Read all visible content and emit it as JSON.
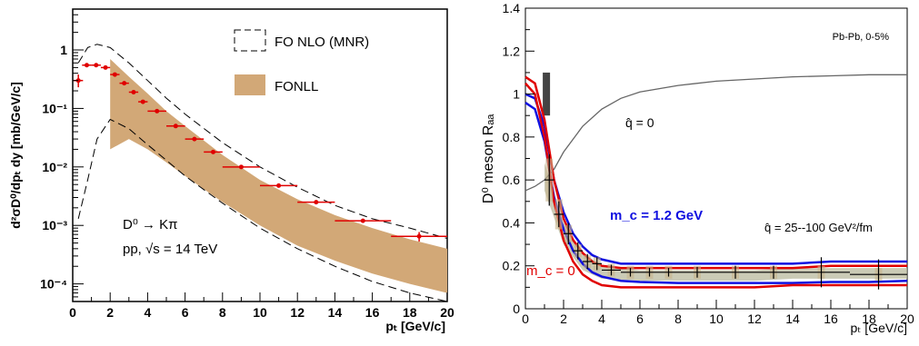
{
  "chart_data": [
    {
      "type": "area",
      "ylabel": "d²σD⁰/dpₜ dy [mb/GeV/c]",
      "xlabel": "pₜ [GeV/c]",
      "xlim": [
        0,
        20
      ],
      "ylim": [
        5e-05,
        5
      ],
      "yscale": "log",
      "xticks": [
        "0",
        "2",
        "4",
        "6",
        "8",
        "10",
        "12",
        "14",
        "16",
        "18",
        "20"
      ],
      "yticks": [
        "10⁻⁴",
        "10⁻³",
        "10⁻²",
        "10⁻¹",
        "1"
      ],
      "legend": {
        "position": "top-right",
        "entries": [
          {
            "label": "FO NLO (MNR)",
            "style": "dashed-box"
          },
          {
            "label": "FONLL",
            "style": "filled-box",
            "color": "#d2a877"
          }
        ]
      },
      "annotations": [
        "D⁰ → Kπ",
        "pp, √s = 14 TeV"
      ],
      "series": [
        {
          "name": "FO NLO (MNR)",
          "kind": "dashed-band",
          "color": "#000000",
          "x": [
            0.3,
            0.8,
            1.3,
            2,
            3,
            4,
            5,
            6,
            8,
            10,
            12,
            14,
            16,
            18,
            20
          ],
          "upper": [
            0.6,
            1.1,
            1.25,
            1.1,
            0.6,
            0.3,
            0.15,
            0.08,
            0.026,
            0.01,
            0.0045,
            0.0022,
            0.0013,
            0.0009,
            0.0006
          ],
          "lower": [
            0.0013,
            0.006,
            0.03,
            0.065,
            0.045,
            0.024,
            0.013,
            0.007,
            0.0024,
            0.0009,
            0.0004,
            0.0002,
            0.00011,
            7e-05,
            5e-05
          ]
        },
        {
          "name": "FONLL",
          "kind": "filled-band",
          "color": "#d2a877",
          "x": [
            2,
            3,
            4,
            5,
            6,
            8,
            10,
            12,
            14,
            16,
            18,
            20
          ],
          "upper": [
            0.7,
            0.35,
            0.18,
            0.09,
            0.05,
            0.016,
            0.006,
            0.0028,
            0.0015,
            0.0009,
            0.00058,
            0.0004
          ],
          "lower": [
            0.02,
            0.03,
            0.02,
            0.012,
            0.007,
            0.0025,
            0.001,
            0.00045,
            0.00025,
            0.00015,
            0.0001,
            7e-05
          ]
        },
        {
          "name": "D⁰ data",
          "kind": "points",
          "color": "#e00000",
          "points": [
            {
              "x": 0.3,
              "y": 0.3,
              "xerr": 0.25,
              "yerr_lo": 0.07,
              "yerr_hi": 0.08
            },
            {
              "x": 0.75,
              "y": 0.55,
              "xerr": 0.25
            },
            {
              "x": 1.25,
              "y": 0.55,
              "xerr": 0.25
            },
            {
              "x": 1.75,
              "y": 0.5,
              "xerr": 0.25
            },
            {
              "x": 2.25,
              "y": 0.38,
              "xerr": 0.25
            },
            {
              "x": 2.75,
              "y": 0.27,
              "xerr": 0.25
            },
            {
              "x": 3.25,
              "y": 0.19,
              "xerr": 0.25
            },
            {
              "x": 3.75,
              "y": 0.13,
              "xerr": 0.25
            },
            {
              "x": 4.5,
              "y": 0.09,
              "xerr": 0.5
            },
            {
              "x": 5.5,
              "y": 0.05,
              "xerr": 0.5
            },
            {
              "x": 6.5,
              "y": 0.03,
              "xerr": 0.5
            },
            {
              "x": 7.5,
              "y": 0.018,
              "xerr": 0.5
            },
            {
              "x": 9,
              "y": 0.01,
              "xerr": 1
            },
            {
              "x": 11,
              "y": 0.0048,
              "xerr": 1
            },
            {
              "x": 13,
              "y": 0.0025,
              "xerr": 1
            },
            {
              "x": 15.5,
              "y": 0.0012,
              "xerr": 1.5
            },
            {
              "x": 18.5,
              "y": 0.00065,
              "xerr": 1.5,
              "yerr_lo": 0.00012,
              "yerr_hi": 0.00012
            }
          ]
        }
      ]
    },
    {
      "type": "line",
      "ylabel": "D⁰ meson Rₐₐ",
      "xlabel": "pₜ [GeV/c]",
      "xlim": [
        0,
        20
      ],
      "ylim": [
        0,
        1.4
      ],
      "xticks": [
        "0",
        "2",
        "4",
        "6",
        "8",
        "10",
        "12",
        "14",
        "16",
        "18",
        "20"
      ],
      "yticks": [
        "0",
        "0.2",
        "0.4",
        "0.6",
        "0.8",
        "1",
        "1.2",
        "1.4"
      ],
      "annotations": [
        "Pb-Pb, 0-5%"
      ],
      "series": [
        {
          "name": "q̂ = 0",
          "kind": "line",
          "color": "#666666",
          "x": [
            0,
            0.5,
            1,
            1.5,
            2,
            3,
            4,
            5,
            6,
            8,
            10,
            12,
            14,
            16,
            18,
            20
          ],
          "y": [
            0.55,
            0.57,
            0.6,
            0.65,
            0.73,
            0.85,
            0.93,
            0.98,
            1.01,
            1.04,
            1.06,
            1.07,
            1.08,
            1.085,
            1.09,
            1.09
          ]
        },
        {
          "name": "mₙ = 1.2 GeV",
          "label": "m_c = 1.2 GeV",
          "kind": "line",
          "color": "#1010e0",
          "x": [
            0,
            0.5,
            1,
            1.5,
            2,
            2.5,
            3,
            3.5,
            4,
            5,
            6,
            8,
            10,
            12,
            14,
            16,
            18,
            20
          ],
          "y": [
            1.0,
            0.98,
            0.85,
            0.6,
            0.45,
            0.35,
            0.29,
            0.25,
            0.23,
            0.21,
            0.21,
            0.21,
            0.21,
            0.21,
            0.21,
            0.22,
            0.22,
            0.22
          ]
        },
        {
          "name": "mₙ = 1.2 GeV (lower)",
          "kind": "line",
          "color": "#1010e0",
          "x": [
            0,
            0.5,
            1,
            1.5,
            2,
            2.5,
            3,
            3.5,
            4,
            5,
            6,
            8,
            10,
            12,
            14,
            16,
            18,
            20
          ],
          "y": [
            0.96,
            0.93,
            0.78,
            0.52,
            0.37,
            0.27,
            0.21,
            0.17,
            0.15,
            0.13,
            0.125,
            0.12,
            0.12,
            0.12,
            0.12,
            0.125,
            0.125,
            0.13
          ]
        },
        {
          "name": "mₙ = 0",
          "label": "m_c = 0",
          "kind": "line",
          "color": "#e00000",
          "x": [
            0,
            0.5,
            1,
            1.5,
            2,
            2.5,
            3,
            3.5,
            4,
            5,
            6,
            8,
            10,
            12,
            14,
            16,
            18,
            20
          ],
          "y": [
            1.05,
            1.0,
            0.8,
            0.5,
            0.32,
            0.22,
            0.16,
            0.13,
            0.11,
            0.1,
            0.1,
            0.1,
            0.1,
            0.1,
            0.11,
            0.11,
            0.11,
            0.11
          ]
        },
        {
          "name": "mₙ = 0 (upper)",
          "kind": "line",
          "color": "#e00000",
          "x": [
            0,
            0.5,
            1,
            1.5,
            2,
            2.5,
            3,
            3.5,
            4,
            5,
            6,
            8,
            10,
            12,
            14,
            16,
            18,
            20
          ],
          "y": [
            1.08,
            1.05,
            0.88,
            0.6,
            0.42,
            0.32,
            0.26,
            0.22,
            0.2,
            0.19,
            0.19,
            0.19,
            0.19,
            0.19,
            0.19,
            0.2,
            0.2,
            0.2
          ]
        },
        {
          "name": "data",
          "kind": "points",
          "color": "#000000",
          "points": [
            {
              "x": 1.25,
              "y": 0.6,
              "xerr": 0.25,
              "yerr": 0.12,
              "sys": 0.1
            },
            {
              "x": 1.75,
              "y": 0.44,
              "xerr": 0.25,
              "yerr": 0.06,
              "sys": 0.07
            },
            {
              "x": 2.25,
              "y": 0.35,
              "xerr": 0.25,
              "yerr": 0.05,
              "sys": 0.04
            },
            {
              "x": 2.75,
              "y": 0.27,
              "xerr": 0.25,
              "yerr": 0.04,
              "sys": 0.03
            },
            {
              "x": 3.25,
              "y": 0.22,
              "xerr": 0.25,
              "yerr": 0.035,
              "sys": 0.03
            },
            {
              "x": 3.75,
              "y": 0.21,
              "xerr": 0.25,
              "yerr": 0.03,
              "sys": 0.03
            },
            {
              "x": 4.5,
              "y": 0.18,
              "xerr": 0.5,
              "yerr": 0.025,
              "sys": 0.03
            },
            {
              "x": 5.5,
              "y": 0.17,
              "xerr": 0.5,
              "yerr": 0.02,
              "sys": 0.03
            },
            {
              "x": 6.5,
              "y": 0.17,
              "xerr": 0.5,
              "yerr": 0.02,
              "sys": 0.03
            },
            {
              "x": 7.5,
              "y": 0.17,
              "xerr": 0.5,
              "yerr": 0.02,
              "sys": 0.03
            },
            {
              "x": 9,
              "y": 0.17,
              "xerr": 1,
              "yerr": 0.025,
              "sys": 0.03
            },
            {
              "x": 11,
              "y": 0.17,
              "xerr": 1,
              "yerr": 0.03,
              "sys": 0.03
            },
            {
              "x": 13,
              "y": 0.17,
              "xerr": 1,
              "yerr": 0.03,
              "sys": 0.03
            },
            {
              "x": 15.5,
              "y": 0.17,
              "xerr": 1.5,
              "yerr": 0.07,
              "sys": 0.03
            },
            {
              "x": 18.5,
              "y": 0.16,
              "xerr": 1.5,
              "yerr": 0.07,
              "sys": 0.03
            }
          ]
        },
        {
          "name": "q̂ = 25--100 GeV²/fm",
          "kind": "filled-band",
          "color": "#b5b597",
          "x": [
            1,
            2,
            3,
            4,
            6,
            8,
            10,
            12,
            14,
            16,
            18,
            20
          ],
          "upper": [
            0.68,
            0.4,
            0.26,
            0.2,
            0.18,
            0.18,
            0.18,
            0.18,
            0.19,
            0.19,
            0.19,
            0.19
          ],
          "lower": [
            0.55,
            0.3,
            0.18,
            0.14,
            0.13,
            0.13,
            0.13,
            0.13,
            0.14,
            0.14,
            0.14,
            0.14
          ]
        },
        {
          "name": "normalization uncertainty",
          "kind": "box",
          "color": "#444444",
          "x": 1.1,
          "ymin": 0.9,
          "ymax": 1.1
        }
      ],
      "text_labels": {
        "qhat0": "q̂ = 0",
        "mc12": "m_c = 1.2 GeV",
        "mc0": "m_c = 0",
        "qhatband": "q̂ = 25--100 GeV²/fm"
      }
    }
  ]
}
